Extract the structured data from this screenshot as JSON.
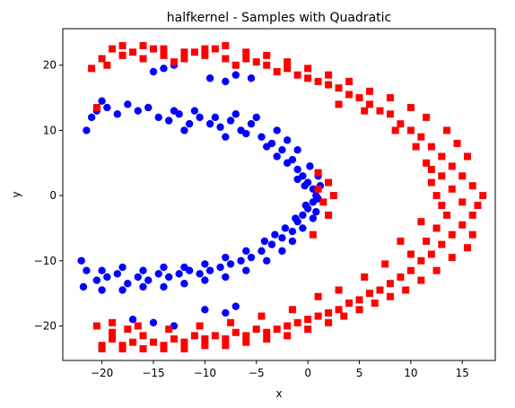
{
  "chart_data": {
    "type": "scatter",
    "title": "halfkernel - Samples with Quadratic",
    "xlabel": "x",
    "ylabel": "y",
    "xlim": [
      -23.8,
      18.2
    ],
    "ylim": [
      -25.3,
      25.6
    ],
    "xticks": [
      -20,
      -15,
      -10,
      -5,
      0,
      5,
      10,
      15
    ],
    "yticks": [
      -20,
      -10,
      0,
      10,
      20
    ],
    "grid": false,
    "series": [
      {
        "color": "#0000ff",
        "marker": "circle",
        "points": [
          [
            -21.0,
            12.0
          ],
          [
            -20.5,
            13.0
          ],
          [
            -19.5,
            13.5
          ],
          [
            -18.5,
            12.5
          ],
          [
            -17.5,
            14.0
          ],
          [
            -16.5,
            13.0
          ],
          [
            -15.5,
            13.5
          ],
          [
            -14.5,
            12.0
          ],
          [
            -13.5,
            11.5
          ],
          [
            -12.5,
            12.5
          ],
          [
            -11.5,
            11.0
          ],
          [
            -10.5,
            12.0
          ],
          [
            -9.5,
            11.0
          ],
          [
            -8.5,
            10.5
          ],
          [
            -7.5,
            11.5
          ],
          [
            -6.5,
            10.0
          ],
          [
            -5.5,
            11.0
          ],
          [
            -4.5,
            9.0
          ],
          [
            -3.5,
            8.0
          ],
          [
            -2.5,
            7.0
          ],
          [
            -1.5,
            5.5
          ],
          [
            -1.0,
            4.0
          ],
          [
            -0.5,
            3.0
          ],
          [
            0.0,
            2.0
          ],
          [
            0.5,
            1.0
          ],
          [
            0.8,
            0.0
          ],
          [
            0.5,
            -1.0
          ],
          [
            0.0,
            -2.0
          ],
          [
            -0.5,
            -3.0
          ],
          [
            -1.0,
            -4.0
          ],
          [
            -1.5,
            -5.5
          ],
          [
            -2.5,
            -6.5
          ],
          [
            -3.5,
            -7.5
          ],
          [
            -4.5,
            -8.5
          ],
          [
            -5.5,
            -9.5
          ],
          [
            -6.5,
            -10.0
          ],
          [
            -7.5,
            -10.5
          ],
          [
            -8.5,
            -11.0
          ],
          [
            -9.5,
            -11.5
          ],
          [
            -10.5,
            -12.0
          ],
          [
            -11.5,
            -11.5
          ],
          [
            -12.5,
            -12.0
          ],
          [
            -13.5,
            -12.5
          ],
          [
            -14.5,
            -12.0
          ],
          [
            -15.5,
            -13.0
          ],
          [
            -16.5,
            -12.5
          ],
          [
            -17.5,
            -13.5
          ],
          [
            -18.5,
            -12.0
          ],
          [
            -19.5,
            -12.5
          ],
          [
            -20.5,
            -13.0
          ],
          [
            -21.5,
            -11.5
          ],
          [
            -22.0,
            -10.0
          ],
          [
            -21.8,
            -14.0
          ],
          [
            -21.5,
            10.0
          ],
          [
            -20.0,
            14.5
          ],
          [
            -15.0,
            19.0
          ],
          [
            -14.0,
            19.5
          ],
          [
            -13.0,
            20.0
          ],
          [
            -9.5,
            18.0
          ],
          [
            -8.0,
            17.5
          ],
          [
            -7.0,
            18.5
          ],
          [
            -5.5,
            18.0
          ],
          [
            -17.0,
            -19.0
          ],
          [
            -15.0,
            -19.5
          ],
          [
            -13.0,
            -20.0
          ],
          [
            -10.0,
            -17.5
          ],
          [
            -8.0,
            -18.0
          ],
          [
            -7.0,
            -17.0
          ],
          [
            -12.0,
            10.0
          ],
          [
            -8.0,
            9.0
          ],
          [
            -6.0,
            9.5
          ],
          [
            -4.0,
            7.5
          ],
          [
            -3.0,
            6.0
          ],
          [
            -2.0,
            5.0
          ],
          [
            -1.0,
            2.5
          ],
          [
            -0.3,
            1.5
          ],
          [
            -0.2,
            -1.5
          ],
          [
            -1.2,
            -3.5
          ],
          [
            -2.2,
            -5.0
          ],
          [
            -3.2,
            -6.0
          ],
          [
            -4.2,
            -7.0
          ],
          [
            -6.0,
            -8.5
          ],
          [
            -8.0,
            -9.5
          ],
          [
            -10.0,
            -10.5
          ],
          [
            -12.0,
            -11.0
          ],
          [
            -14.0,
            -11.0
          ],
          [
            -16.0,
            -11.5
          ],
          [
            -18.0,
            -11.0
          ],
          [
            -20.0,
            -11.5
          ],
          [
            -13.0,
            13.0
          ],
          [
            -11.0,
            13.0
          ],
          [
            -9.0,
            12.0
          ],
          [
            -7.0,
            12.5
          ],
          [
            -5.0,
            12.0
          ],
          [
            -3.0,
            10.0
          ],
          [
            -2.0,
            8.5
          ],
          [
            -1.0,
            7.0
          ],
          [
            0.2,
            4.5
          ],
          [
            1.0,
            3.0
          ],
          [
            1.2,
            1.5
          ],
          [
            1.0,
            -0.5
          ],
          [
            0.8,
            -2.5
          ],
          [
            0.5,
            -3.5
          ],
          [
            -0.5,
            -5.0
          ],
          [
            -1.5,
            -7.0
          ],
          [
            -2.5,
            -8.5
          ],
          [
            -4.0,
            -10.0
          ],
          [
            -6.0,
            -11.5
          ],
          [
            -8.0,
            -12.5
          ],
          [
            -10.0,
            -13.0
          ],
          [
            -12.0,
            -13.5
          ],
          [
            -14.0,
            -14.0
          ],
          [
            -16.0,
            -14.0
          ],
          [
            -18.0,
            -14.5
          ],
          [
            -20.0,
            -14.5
          ]
        ]
      },
      {
        "color": "#ff0000",
        "marker": "square",
        "points": [
          [
            -21.0,
            19.5
          ],
          [
            -20.0,
            21.0
          ],
          [
            -19.0,
            22.5
          ],
          [
            -18.0,
            23.0
          ],
          [
            -17.0,
            22.0
          ],
          [
            -16.0,
            21.0
          ],
          [
            -15.0,
            22.5
          ],
          [
            -14.0,
            21.5
          ],
          [
            -13.0,
            20.5
          ],
          [
            -12.0,
            21.0
          ],
          [
            -11.0,
            22.0
          ],
          [
            -10.0,
            21.5
          ],
          [
            -9.0,
            22.5
          ],
          [
            -8.0,
            21.0
          ],
          [
            -7.0,
            20.0
          ],
          [
            -6.0,
            21.0
          ],
          [
            -5.0,
            20.5
          ],
          [
            -4.0,
            20.0
          ],
          [
            -3.0,
            19.0
          ],
          [
            -2.0,
            19.5
          ],
          [
            -1.0,
            18.5
          ],
          [
            0.0,
            18.0
          ],
          [
            1.0,
            17.5
          ],
          [
            2.0,
            17.0
          ],
          [
            3.0,
            16.5
          ],
          [
            4.0,
            15.5
          ],
          [
            5.0,
            15.0
          ],
          [
            6.0,
            14.0
          ],
          [
            7.0,
            13.0
          ],
          [
            8.0,
            12.5
          ],
          [
            9.0,
            11.0
          ],
          [
            10.0,
            10.0
          ],
          [
            11.0,
            9.0
          ],
          [
            12.0,
            7.5
          ],
          [
            13.0,
            6.0
          ],
          [
            14.0,
            4.5
          ],
          [
            15.0,
            3.0
          ],
          [
            16.0,
            1.5
          ],
          [
            17.0,
            0.0
          ],
          [
            16.5,
            -1.5
          ],
          [
            16.0,
            -3.0
          ],
          [
            15.0,
            -4.5
          ],
          [
            14.0,
            -6.0
          ],
          [
            13.0,
            -7.5
          ],
          [
            12.0,
            -9.0
          ],
          [
            11.0,
            -10.0
          ],
          [
            10.0,
            -11.5
          ],
          [
            9.0,
            -12.5
          ],
          [
            8.0,
            -13.5
          ],
          [
            7.0,
            -14.5
          ],
          [
            6.0,
            -15.0
          ],
          [
            5.0,
            -16.0
          ],
          [
            4.0,
            -16.5
          ],
          [
            3.0,
            -17.5
          ],
          [
            2.0,
            -18.0
          ],
          [
            1.0,
            -18.5
          ],
          [
            0.0,
            -19.0
          ],
          [
            -1.0,
            -19.5
          ],
          [
            -2.0,
            -20.0
          ],
          [
            -3.0,
            -20.5
          ],
          [
            -4.0,
            -21.0
          ],
          [
            -5.0,
            -20.5
          ],
          [
            -6.0,
            -21.5
          ],
          [
            -7.0,
            -21.0
          ],
          [
            -8.0,
            -22.0
          ],
          [
            -9.0,
            -21.5
          ],
          [
            -10.0,
            -22.0
          ],
          [
            -11.0,
            -21.5
          ],
          [
            -12.0,
            -22.5
          ],
          [
            -13.0,
            -22.0
          ],
          [
            -14.0,
            -23.0
          ],
          [
            -15.0,
            -22.5
          ],
          [
            -16.0,
            -21.5
          ],
          [
            -17.0,
            -22.5
          ],
          [
            -18.0,
            -23.0
          ],
          [
            -19.0,
            -22.0
          ],
          [
            -20.0,
            -23.0
          ],
          [
            -20.5,
            -20.0
          ],
          [
            -19.0,
            -21.0
          ],
          [
            -17.5,
            -20.5
          ],
          [
            -20.5,
            13.5
          ],
          [
            1.0,
            1.0
          ],
          [
            2.0,
            2.0
          ],
          [
            1.5,
            -1.0
          ],
          [
            2.0,
            -3.0
          ],
          [
            0.5,
            -6.0
          ],
          [
            1.0,
            3.5
          ],
          [
            2.5,
            0.0
          ],
          [
            12.0,
            4.0
          ],
          [
            13.0,
            3.0
          ],
          [
            14.0,
            1.0
          ],
          [
            15.0,
            -1.0
          ],
          [
            13.5,
            -3.0
          ],
          [
            12.5,
            -5.0
          ],
          [
            11.5,
            -7.0
          ],
          [
            10.0,
            -9.0
          ],
          [
            12.0,
            2.0
          ],
          [
            15.5,
            6.0
          ],
          [
            14.5,
            8.0
          ],
          [
            13.5,
            10.0
          ],
          [
            11.5,
            12.0
          ],
          [
            10.0,
            13.5
          ],
          [
            8.0,
            15.0
          ],
          [
            6.0,
            16.0
          ],
          [
            4.0,
            17.5
          ],
          [
            2.0,
            18.5
          ],
          [
            0.0,
            19.5
          ],
          [
            -2.0,
            20.5
          ],
          [
            -4.0,
            21.5
          ],
          [
            -6.0,
            22.0
          ],
          [
            -8.0,
            23.0
          ],
          [
            -10.0,
            22.5
          ],
          [
            -12.0,
            22.0
          ],
          [
            -14.0,
            22.5
          ],
          [
            -16.0,
            23.0
          ],
          [
            -18.0,
            21.5
          ],
          [
            -19.5,
            20.0
          ],
          [
            16.0,
            -6.0
          ],
          [
            15.5,
            -8.0
          ],
          [
            14.0,
            -9.5
          ],
          [
            12.5,
            -11.5
          ],
          [
            11.0,
            -13.0
          ],
          [
            9.5,
            -14.5
          ],
          [
            8.0,
            -15.5
          ],
          [
            6.5,
            -16.5
          ],
          [
            5.0,
            -17.5
          ],
          [
            3.5,
            -18.5
          ],
          [
            2.0,
            -19.5
          ],
          [
            0.0,
            -20.5
          ],
          [
            -2.0,
            -21.5
          ],
          [
            -4.0,
            -22.0
          ],
          [
            -6.0,
            -22.5
          ],
          [
            -8.0,
            -23.0
          ],
          [
            -10.0,
            -23.0
          ],
          [
            -12.0,
            -23.5
          ],
          [
            -14.0,
            -23.5
          ],
          [
            -16.0,
            -23.5
          ],
          [
            -18.0,
            -23.5
          ],
          [
            -20.0,
            -23.5
          ],
          [
            3.0,
            14.0
          ],
          [
            5.5,
            13.0
          ],
          [
            8.5,
            10.0
          ],
          [
            10.5,
            7.5
          ],
          [
            11.5,
            5.0
          ],
          [
            12.5,
            0.0
          ],
          [
            13.0,
            -1.5
          ],
          [
            11.0,
            -4.0
          ],
          [
            9.0,
            -7.0
          ],
          [
            7.5,
            -10.5
          ],
          [
            5.5,
            -12.5
          ],
          [
            3.0,
            -14.5
          ],
          [
            1.0,
            -15.5
          ],
          [
            -1.5,
            -17.5
          ],
          [
            -4.5,
            -18.5
          ],
          [
            -7.5,
            -19.5
          ],
          [
            -10.5,
            -20.0
          ],
          [
            -13.5,
            -20.5
          ],
          [
            -16.5,
            -20.0
          ],
          [
            -19.0,
            -19.5
          ]
        ]
      }
    ]
  }
}
